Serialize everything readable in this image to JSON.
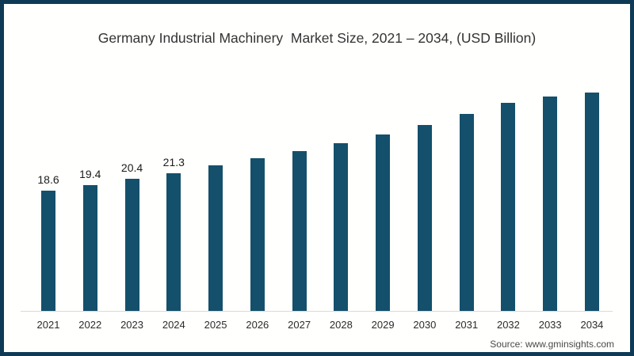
{
  "chart_data": {
    "type": "bar",
    "title": "Germany Industrial Machinery  Market Size, 2021 – 2034, (USD Billion)",
    "categories": [
      "2021",
      "2022",
      "2023",
      "2024",
      "2025",
      "2026",
      "2027",
      "2028",
      "2029",
      "2030",
      "2031",
      "2032",
      "2033",
      "2034"
    ],
    "values": [
      18.6,
      19.4,
      20.4,
      21.3,
      22.4,
      23.5,
      24.6,
      25.9,
      27.2,
      28.6,
      30.3,
      32.0,
      33.0,
      33.6
    ],
    "data_labels": [
      "18.6",
      "19.4",
      "20.4",
      "21.3",
      "",
      "",
      "",
      "",
      "",
      "",
      "",
      "",
      "",
      ""
    ],
    "xlabel": "",
    "ylabel": "",
    "ylim": [
      0,
      35
    ],
    "grid": false,
    "legend": false,
    "y_axis_visible": false,
    "x_axis_line": true
  },
  "colors": {
    "bar": "#14506b",
    "frame_border": "#0f3a55",
    "axis_line": "#dadada",
    "title_text": "#333333",
    "label_text": "#1c1c1c",
    "source_text": "#4a4a4a"
  },
  "source": {
    "text": "Source: www.gminsights.com"
  }
}
